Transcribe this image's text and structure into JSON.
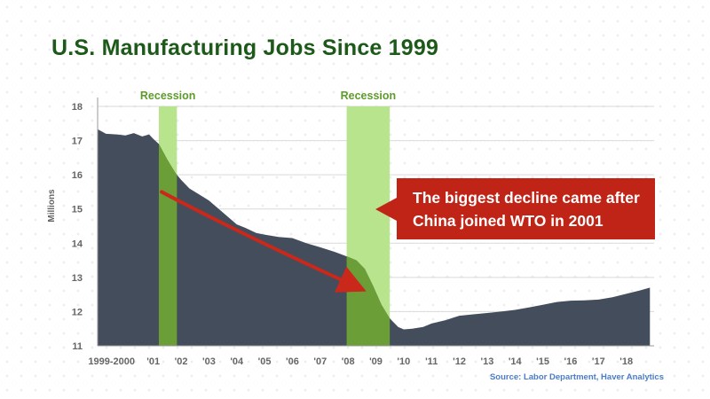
{
  "title": "U.S. Manufacturing Jobs Since 1999",
  "source": "Source: Labor Department, Haver Analytics",
  "callout": {
    "line1": "The biggest decline came after",
    "line2": "China joined WTO in 2001"
  },
  "colors": {
    "title": "#1d5a1a",
    "area": "#444d5b",
    "recession_light": "#b9e48e",
    "recession_dark": "#6b9e36",
    "recession_label": "#5e9b2a",
    "callout": "#c02417",
    "trend_arrow": "#c9281a",
    "source": "#4a7cc8"
  },
  "chart_data": {
    "type": "area",
    "title": "U.S. Manufacturing Jobs Since 1999",
    "ylabel": "Millions",
    "xlabel": "",
    "ylim": [
      11,
      18
    ],
    "xlim": [
      1999,
      2019
    ],
    "yticks": [
      11,
      12,
      13,
      14,
      15,
      16,
      17,
      18
    ],
    "xticks": [
      {
        "x": 1999.5,
        "label": "1999-2000"
      },
      {
        "x": 2001,
        "label": "'01"
      },
      {
        "x": 2002,
        "label": "'02"
      },
      {
        "x": 2003,
        "label": "'03"
      },
      {
        "x": 2004,
        "label": "'04"
      },
      {
        "x": 2005,
        "label": "'05"
      },
      {
        "x": 2006,
        "label": "'06"
      },
      {
        "x": 2007,
        "label": "'07"
      },
      {
        "x": 2008,
        "label": "'08"
      },
      {
        "x": 2009,
        "label": "'09"
      },
      {
        "x": 2010,
        "label": "'10"
      },
      {
        "x": 2011,
        "label": "'11"
      },
      {
        "x": 2012,
        "label": "'12"
      },
      {
        "x": 2013,
        "label": "'13"
      },
      {
        "x": 2014,
        "label": "'14"
      },
      {
        "x": 2015,
        "label": "'15"
      },
      {
        "x": 2016,
        "label": "'16"
      },
      {
        "x": 2017,
        "label": "'17"
      },
      {
        "x": 2018,
        "label": "'18"
      }
    ],
    "grid": true,
    "series": [
      {
        "points": [
          [
            1999.0,
            17.33
          ],
          [
            1999.3,
            17.2
          ],
          [
            1999.7,
            17.18
          ],
          [
            2000.0,
            17.15
          ],
          [
            2000.3,
            17.22
          ],
          [
            2000.6,
            17.12
          ],
          [
            2000.85,
            17.18
          ],
          [
            2001.0,
            17.05
          ],
          [
            2001.2,
            16.9
          ],
          [
            2001.5,
            16.45
          ],
          [
            2001.8,
            16.05
          ],
          [
            2002.0,
            15.85
          ],
          [
            2002.3,
            15.6
          ],
          [
            2002.6,
            15.45
          ],
          [
            2003.0,
            15.25
          ],
          [
            2003.5,
            14.9
          ],
          [
            2004.0,
            14.55
          ],
          [
            2004.3,
            14.45
          ],
          [
            2004.7,
            14.3
          ],
          [
            2005.0,
            14.25
          ],
          [
            2005.5,
            14.18
          ],
          [
            2006.0,
            14.15
          ],
          [
            2006.5,
            14.0
          ],
          [
            2007.0,
            13.88
          ],
          [
            2007.5,
            13.75
          ],
          [
            2008.0,
            13.6
          ],
          [
            2008.3,
            13.5
          ],
          [
            2008.6,
            13.25
          ],
          [
            2008.9,
            12.75
          ],
          [
            2009.2,
            12.2
          ],
          [
            2009.5,
            11.8
          ],
          [
            2009.8,
            11.55
          ],
          [
            2010.0,
            11.48
          ],
          [
            2010.3,
            11.5
          ],
          [
            2010.7,
            11.55
          ],
          [
            2011.0,
            11.65
          ],
          [
            2011.5,
            11.75
          ],
          [
            2012.0,
            11.88
          ],
          [
            2012.5,
            11.92
          ],
          [
            2013.0,
            11.96
          ],
          [
            2013.5,
            12.0
          ],
          [
            2014.0,
            12.05
          ],
          [
            2014.5,
            12.12
          ],
          [
            2015.0,
            12.2
          ],
          [
            2015.5,
            12.28
          ],
          [
            2016.0,
            12.32
          ],
          [
            2016.5,
            12.33
          ],
          [
            2017.0,
            12.35
          ],
          [
            2017.5,
            12.42
          ],
          [
            2018.0,
            12.52
          ],
          [
            2018.5,
            12.62
          ],
          [
            2018.85,
            12.7
          ]
        ]
      }
    ],
    "recessions": [
      {
        "label": "Recession",
        "start": 2001.2,
        "end": 2001.85
      },
      {
        "label": "Recession",
        "start": 2007.95,
        "end": 2009.5
      }
    ],
    "trend_arrow": {
      "from": [
        2001.3,
        15.5
      ],
      "to": [
        2008.5,
        12.67
      ]
    }
  }
}
